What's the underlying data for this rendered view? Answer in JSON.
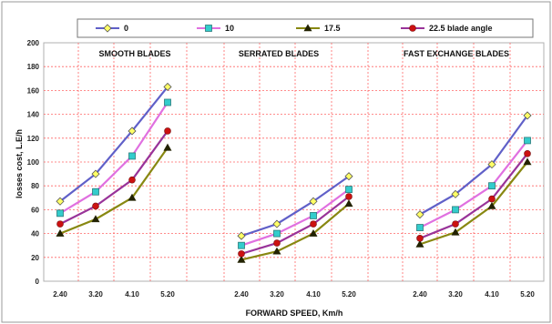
{
  "chart_data": {
    "type": "line",
    "xlabel": "FORWARD SPEED, Km/h",
    "ylabel": "losses cost, L.E/h",
    "ylim": [
      0,
      200
    ],
    "yticks": [
      0,
      20,
      40,
      60,
      80,
      100,
      120,
      140,
      160,
      180,
      200
    ],
    "grid": true,
    "legend_position": "top",
    "panels": [
      {
        "title": "SMOOTH BLADES",
        "categories": [
          "2.40",
          "3.20",
          "4.10",
          "5.20"
        ],
        "series": [
          {
            "name": "0",
            "values": [
              67,
              90,
              126,
              163
            ]
          },
          {
            "name": "10",
            "values": [
              57,
              75,
              105,
              150
            ]
          },
          {
            "name": "17.5",
            "values": [
              40,
              52,
              70,
              112
            ]
          },
          {
            "name": "22.5 blade angle",
            "values": [
              48,
              63,
              85,
              126
            ]
          }
        ]
      },
      {
        "title": "SERRATED BLADES",
        "categories": [
          "2.40",
          "3.20",
          "4.10",
          "5.20"
        ],
        "series": [
          {
            "name": "0",
            "values": [
              38,
              48,
              67,
              88
            ]
          },
          {
            "name": "10",
            "values": [
              30,
              40,
              55,
              77
            ]
          },
          {
            "name": "17.5",
            "values": [
              18,
              25,
              40,
              65
            ]
          },
          {
            "name": "22.5 blade angle",
            "values": [
              23,
              32,
              48,
              71
            ]
          }
        ]
      },
      {
        "title": "FAST EXCHANGE BLADES",
        "categories": [
          "2.40",
          "3.20",
          "4.10",
          "5.20"
        ],
        "series": [
          {
            "name": "0",
            "values": [
              56,
              73,
              98,
              139
            ]
          },
          {
            "name": "10",
            "values": [
              45,
              60,
              80,
              118
            ]
          },
          {
            "name": "17.5",
            "values": [
              31,
              41,
              63,
              100
            ]
          },
          {
            "name": "22.5 blade angle",
            "values": [
              36,
              48,
              69,
              107
            ]
          }
        ]
      }
    ],
    "series_styles": [
      {
        "name": "0",
        "color": "#6060c8",
        "marker": "diamond",
        "marker_fill": "#ffff66"
      },
      {
        "name": "10",
        "color": "#e070e0",
        "marker": "square",
        "marker_fill": "#33cccc"
      },
      {
        "name": "17.5",
        "color": "#888811",
        "marker": "triangle",
        "marker_fill": "#222200"
      },
      {
        "name": "22.5 blade angle",
        "color": "#993399",
        "marker": "circle",
        "marker_fill": "#cc1111"
      }
    ]
  }
}
